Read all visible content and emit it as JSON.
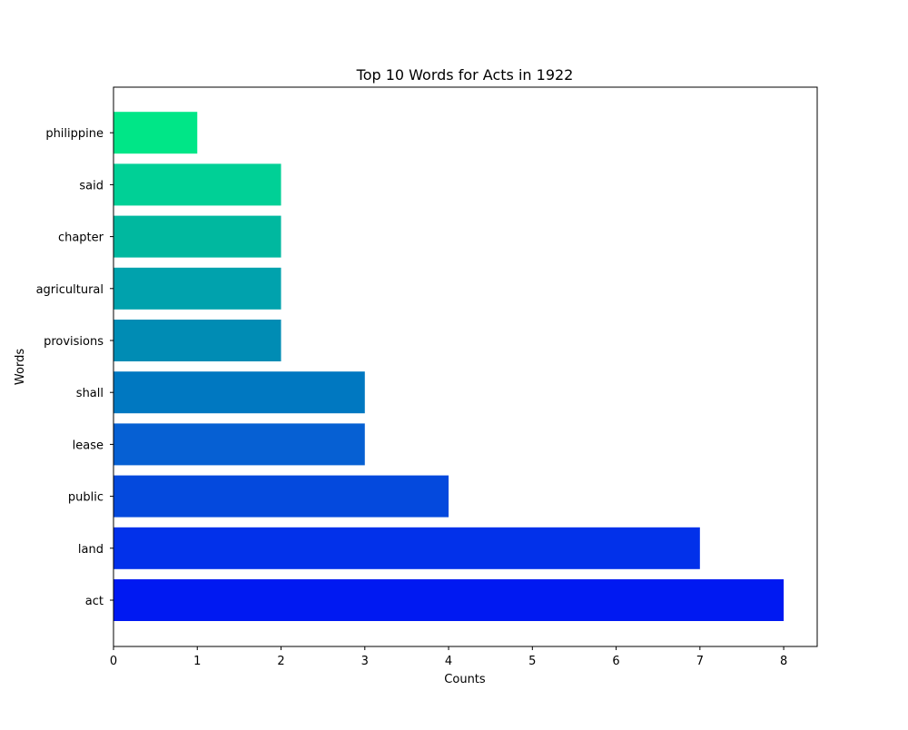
{
  "chart_data": {
    "type": "bar",
    "orientation": "horizontal",
    "title": "Top 10 Words for Acts in 1922",
    "xlabel": "Counts",
    "ylabel": "Words",
    "categories": [
      "act",
      "land",
      "public",
      "lease",
      "shall",
      "provisions",
      "agricultural",
      "chapter",
      "said",
      "philippine"
    ],
    "values": [
      8,
      7,
      4,
      3,
      3,
      2,
      2,
      2,
      2,
      1
    ],
    "colors": [
      "#0019f2",
      "#0231ea",
      "#0449dd",
      "#0660d3",
      "#0078c1",
      "#008cb4",
      "#00a2ad",
      "#00b89f",
      "#00d096",
      "#00e687"
    ],
    "xlim": [
      0,
      8.4
    ],
    "xticks": [
      0,
      1,
      2,
      3,
      4,
      5,
      6,
      7,
      8
    ],
    "grid": false,
    "legend": "none"
  }
}
